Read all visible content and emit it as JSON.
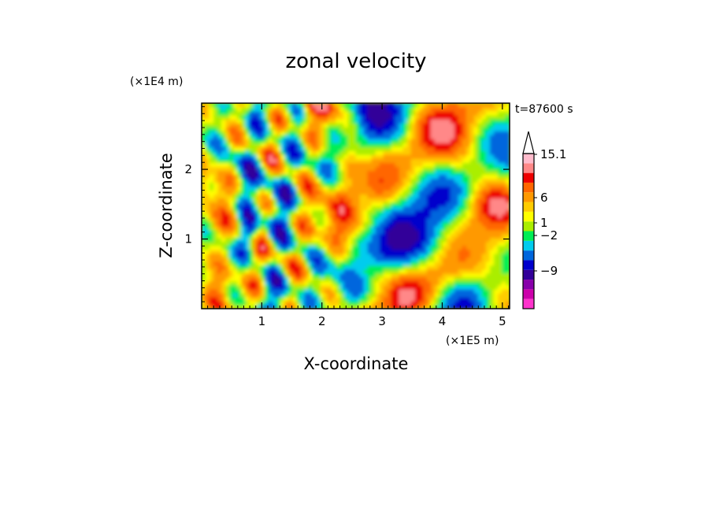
{
  "chart_data": {
    "type": "heatmap",
    "title": "zonal velocity",
    "xlabel": "X-coordinate",
    "ylabel": "Z-coordinate",
    "x_unit": "(×1E5 m)",
    "y_unit": "(×1E4 m)",
    "time_label": "t=87600 s",
    "xlim": [
      0,
      5.12
    ],
    "ylim": [
      0,
      2.95
    ],
    "xticks": [
      1,
      2,
      3,
      4,
      5
    ],
    "yticks": [
      1,
      2
    ],
    "colorbar": {
      "labels": [
        {
          "text": "15.1",
          "level": 15.1
        },
        {
          "text": "6",
          "level": 6
        },
        {
          "text": "1",
          "level": 1
        },
        {
          "text": "−2",
          "level": -2
        },
        {
          "text": "−9",
          "level": -9
        }
      ],
      "bands": [
        {
          "color": "#ff33cc"
        },
        {
          "color": "#cc00aa"
        },
        {
          "color": "#8800aa"
        },
        {
          "color": "#330099"
        },
        {
          "color": "#0000cc"
        },
        {
          "color": "#0066dd"
        },
        {
          "color": "#00ccee"
        },
        {
          "color": "#00ee55"
        },
        {
          "color": "#aaee00"
        },
        {
          "color": "#ffff00"
        },
        {
          "color": "#ffcc00"
        },
        {
          "color": "#ff9900"
        },
        {
          "color": "#ff6600"
        },
        {
          "color": "#ee0000"
        },
        {
          "color": "#ff8888"
        },
        {
          "color": "#ffbbcc"
        }
      ],
      "arrow_color": "#ffffff"
    }
  }
}
